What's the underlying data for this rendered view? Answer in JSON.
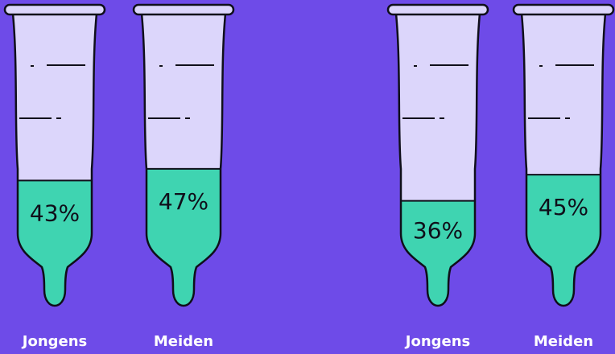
{
  "chart_data": {
    "type": "bar",
    "style": "test-tube fill gauges",
    "groups": [
      {
        "bars": [
          {
            "category": "Jongens",
            "value": 43,
            "label": "43%"
          },
          {
            "category": "Meiden",
            "value": 47,
            "label": "47%"
          }
        ]
      },
      {
        "bars": [
          {
            "category": "Jongens",
            "value": 36,
            "label": "36%"
          },
          {
            "category": "Meiden",
            "value": 45,
            "label": "45%"
          }
        ]
      }
    ],
    "ylim": [
      0,
      100
    ],
    "colors": {
      "background": "#6E4BE8",
      "tube_empty": "#DCD6FB",
      "fill": "#3FD4B1",
      "outline": "#0F0F1A",
      "label_text": "#FFFFFF"
    }
  }
}
